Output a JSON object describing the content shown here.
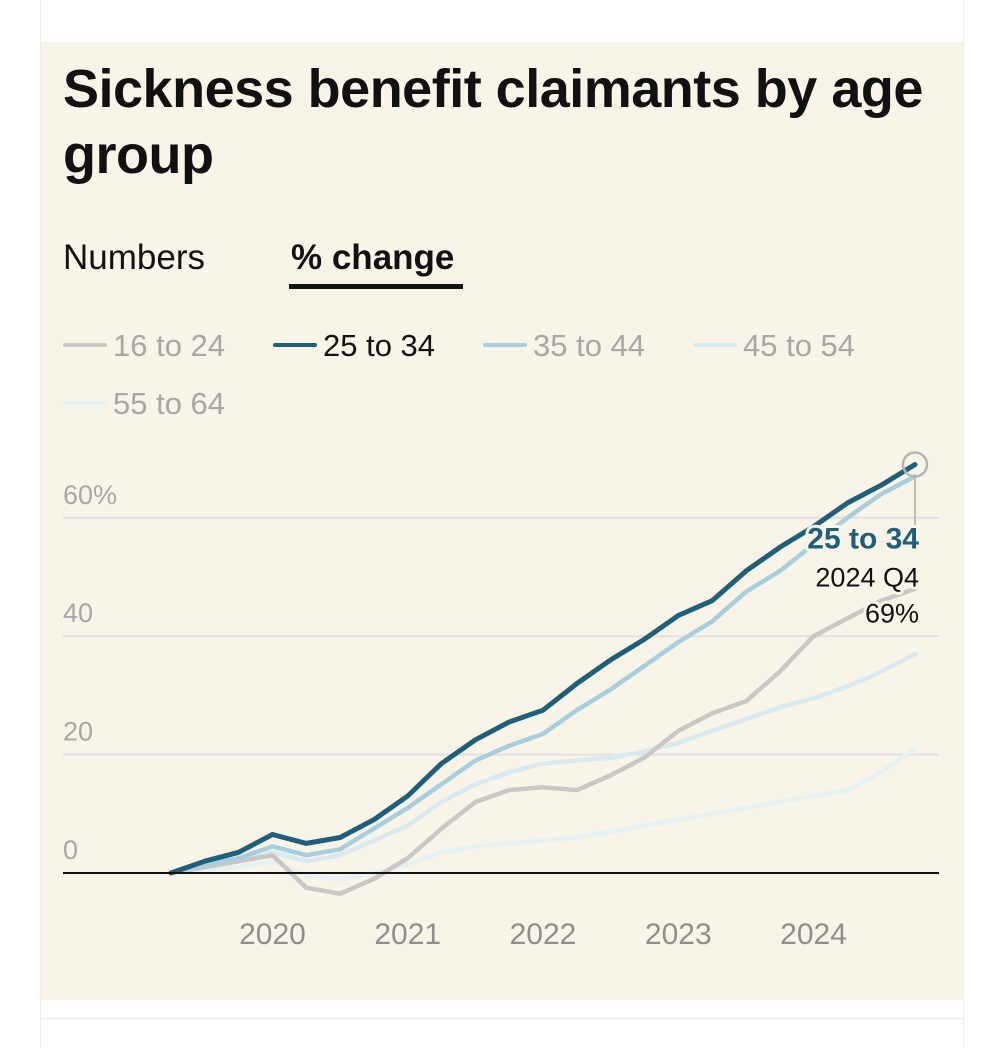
{
  "title": "Sickness benefit claimants by age group",
  "tabs": [
    {
      "label": "Numbers",
      "active": false
    },
    {
      "label": "% change",
      "active": true
    }
  ],
  "colors": {
    "background": "#f8f4e8",
    "highlight": "#1f5f7a",
    "axis": "#121212",
    "grid": "#e4dfe3",
    "tick_text": "#a8a8a4"
  },
  "chart_data": {
    "type": "line",
    "ylabel": "",
    "xlabel": "",
    "ylim": [
      -5,
      70
    ],
    "y_ticks": [
      {
        "value": 0,
        "label": "0"
      },
      {
        "value": 20,
        "label": "20"
      },
      {
        "value": 40,
        "label": "40"
      },
      {
        "value": 60,
        "label": "60%"
      }
    ],
    "x_ticks": [
      "2020",
      "2021",
      "2022",
      "2023",
      "2024"
    ],
    "x": [
      "2019 Q2",
      "2019 Q3",
      "2019 Q4",
      "2020 Q1",
      "2020 Q2",
      "2020 Q3",
      "2020 Q4",
      "2021 Q1",
      "2021 Q2",
      "2021 Q3",
      "2021 Q4",
      "2022 Q1",
      "2022 Q2",
      "2022 Q3",
      "2022 Q4",
      "2023 Q1",
      "2023 Q2",
      "2023 Q3",
      "2023 Q4",
      "2024 Q1",
      "2024 Q2",
      "2024 Q3",
      "2024 Q4"
    ],
    "series": [
      {
        "name": "16 to 24",
        "color": "#c9c8c4",
        "values": [
          0,
          1,
          2,
          3,
          -2.5,
          -3.5,
          -1,
          2.5,
          7.5,
          12,
          14,
          14.5,
          14,
          16.5,
          19.5,
          24,
          27,
          29,
          34,
          40,
          43,
          46,
          48
        ]
      },
      {
        "name": "25 to 34",
        "color": "#1f5f7a",
        "values": [
          0,
          2,
          3.5,
          6.5,
          5,
          6,
          9,
          13,
          18.5,
          22.5,
          25.5,
          27.5,
          32,
          36,
          39.5,
          43.5,
          46,
          51,
          55,
          58.5,
          62.5,
          65.5,
          69
        ]
      },
      {
        "name": "35 to 44",
        "color": "#a8cfe0",
        "values": [
          0,
          1.5,
          2.5,
          4.5,
          3,
          4,
          7.5,
          11,
          15,
          19,
          21.5,
          23.5,
          27.5,
          31,
          35,
          39,
          42.5,
          47.5,
          51,
          55.5,
          60,
          64,
          67
        ]
      },
      {
        "name": "45 to 54",
        "color": "#d8e9ef",
        "values": [
          0,
          1,
          2,
          3.5,
          2,
          3,
          5.5,
          8,
          12,
          15,
          17,
          18.5,
          19,
          19.5,
          20.5,
          22,
          24,
          26,
          28,
          29.5,
          31.5,
          34,
          37
        ]
      },
      {
        "name": "55 to 64",
        "color": "#e6f1f2",
        "values": [
          0,
          0.5,
          1,
          2,
          -0.5,
          -1,
          0,
          1.5,
          3.5,
          4.5,
          5,
          5.5,
          6,
          7,
          8,
          9,
          10,
          11,
          12,
          13,
          14,
          17,
          21
        ]
      }
    ],
    "highlight": {
      "series": "25 to 34",
      "period": "2024 Q4",
      "value_label": "69%"
    }
  }
}
